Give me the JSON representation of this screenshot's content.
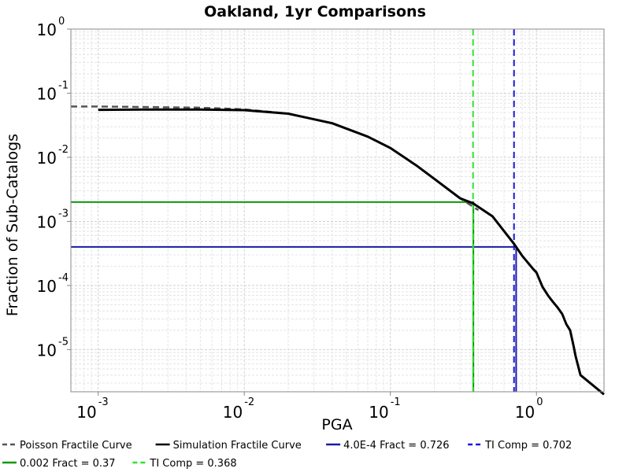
{
  "chart_data": {
    "type": "line",
    "title": "Oakland, 1yr Comparisons",
    "xlabel": "PGA",
    "ylabel": "Fraction of Sub-Catalogs",
    "x_scale": "log",
    "y_scale": "log",
    "xlim": [
      0.00065,
      2.9
    ],
    "ylim": [
      2.2e-06,
      1.0
    ],
    "x_ticks": [
      {
        "base": "10",
        "exp": "-3",
        "value": 0.001
      },
      {
        "base": "10",
        "exp": "-2",
        "value": 0.01
      },
      {
        "base": "10",
        "exp": "-1",
        "value": 0.1
      },
      {
        "base": "10",
        "exp": "0",
        "value": 1
      }
    ],
    "y_ticks": [
      {
        "base": "10",
        "exp": "0",
        "value": 1
      },
      {
        "base": "10",
        "exp": "-1",
        "value": 0.1
      },
      {
        "base": "10",
        "exp": "-2",
        "value": 0.01
      },
      {
        "base": "10",
        "exp": "-3",
        "value": 0.001
      },
      {
        "base": "10",
        "exp": "-4",
        "value": 0.0001
      },
      {
        "base": "10",
        "exp": "-5",
        "value": 1e-05
      }
    ],
    "grid": true,
    "legend_position": "bottom",
    "series": [
      {
        "name": "Poisson Fractile Curve",
        "color": "#555555",
        "dash": "dashed",
        "x": [
          0.00065,
          0.001,
          0.002,
          0.005,
          0.01,
          0.02,
          0.04,
          0.07,
          0.1,
          0.15,
          0.2,
          0.3,
          0.4
        ],
        "y": [
          0.062,
          0.062,
          0.061,
          0.0595,
          0.056,
          0.048,
          0.034,
          0.021,
          0.014,
          0.0075,
          0.0046,
          0.0023,
          0.0015
        ]
      },
      {
        "name": "Simulation Fractile Curve",
        "color": "#000000",
        "dash": "solid",
        "x": [
          0.001,
          0.002,
          0.005,
          0.01,
          0.02,
          0.04,
          0.07,
          0.1,
          0.15,
          0.2,
          0.3,
          0.37,
          0.5,
          0.7,
          0.726,
          0.8,
          0.95,
          1.0,
          1.1,
          1.2,
          1.3,
          1.4,
          1.5,
          1.6,
          1.7,
          1.8,
          1.85,
          2.0,
          2.9
        ],
        "y": [
          0.055,
          0.0555,
          0.0555,
          0.0545,
          0.048,
          0.034,
          0.021,
          0.014,
          0.0075,
          0.0046,
          0.0023,
          0.0019,
          0.0012,
          0.00045,
          0.0004,
          0.00029,
          0.00018,
          0.00016,
          9.5e-05,
          7e-05,
          5.5e-05,
          4.5e-05,
          3.6e-05,
          2.5e-05,
          2e-05,
          1.1e-05,
          8e-06,
          4e-06,
          2e-06
        ]
      }
    ],
    "reference_lines": [
      {
        "name": "4.0E-4 Fract = 0.726",
        "color": "#1a1aa6",
        "dash": "solid",
        "y_level": 0.0004,
        "x_value": 0.726
      },
      {
        "name": "TI Comp = 0.702",
        "color": "#1a1ad6",
        "dash": "dashed",
        "x_value": 0.702
      },
      {
        "name": "0.002 Fract = 0.37",
        "color": "#0a9a0a",
        "dash": "solid",
        "y_level": 0.002,
        "x_value": 0.37
      },
      {
        "name": "TI Comp = 0.368",
        "color": "#2ee52e",
        "dash": "dashed",
        "x_value": 0.368
      }
    ]
  }
}
